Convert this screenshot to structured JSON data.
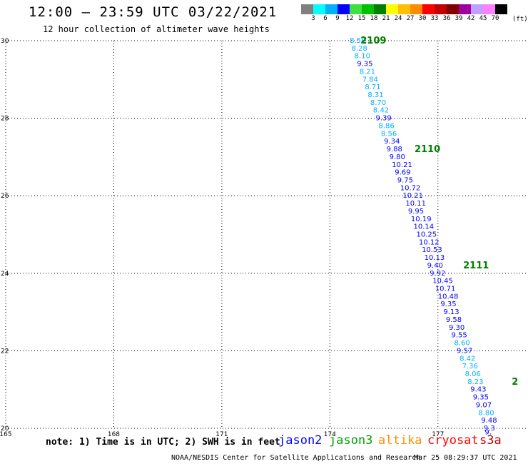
{
  "title": "12:00 – 23:59 UTC 03/22/2021",
  "subtitle": "12 hour collection of altimeter wave heights",
  "legend": {
    "bins": [
      {
        "label": "3",
        "color": "#808080"
      },
      {
        "label": "6",
        "color": "#00ffff"
      },
      {
        "label": "9",
        "color": "#00b0ff"
      },
      {
        "label": "12",
        "color": "#0000ff"
      },
      {
        "label": "15",
        "color": "#40e040"
      },
      {
        "label": "18",
        "color": "#00c000"
      },
      {
        "label": "21",
        "color": "#008000"
      },
      {
        "label": "24",
        "color": "#ffff00"
      },
      {
        "label": "27",
        "color": "#ffc000"
      },
      {
        "label": "30",
        "color": "#ff8c00"
      },
      {
        "label": "33",
        "color": "#ff0000"
      },
      {
        "label": "36",
        "color": "#c00000"
      },
      {
        "label": "39",
        "color": "#800000"
      },
      {
        "label": "42",
        "color": "#a000a0"
      },
      {
        "label": "45",
        "color": "#c0a0ff"
      },
      {
        "label": "70",
        "color": "#ff80ff"
      },
      {
        "label": "",
        "color": "#000000"
      }
    ],
    "unit": "(ft)"
  },
  "note": "note: 1) Time is in UTC; 2) SWH is in feet",
  "satellites": [
    {
      "name": "jason2",
      "color": "#0000ff"
    },
    {
      "name": "jason3",
      "color": "#00a000"
    },
    {
      "name": "altika",
      "color": "#ff8c00"
    },
    {
      "name": "cryosat",
      "color": "#ff0000"
    },
    {
      "name": "s3a",
      "color": "#c00000"
    }
  ],
  "credit": "NOAA/NESDIS Center for Satellite Applications and Research",
  "timestamp": "Mar 25 08:29:37 UTC 2021",
  "chart_data": {
    "type": "scatter",
    "title": "12:00 – 23:59 UTC 03/22/2021",
    "xlabel": "",
    "ylabel": "",
    "xlim": [
      165,
      179.5
    ],
    "ylim": [
      20,
      30
    ],
    "xticks": [
      "165",
      "168",
      "171",
      "174",
      "177"
    ],
    "yticks": [
      "20",
      "22",
      "24",
      "26",
      "28",
      "30"
    ],
    "grid": true,
    "grid_style": "dotted",
    "points": [
      {
        "lon": 174.55,
        "lat": 30.0,
        "label": "8.58",
        "color": "#00b0ff"
      },
      {
        "lon": 174.6,
        "lat": 29.8,
        "label": "8.28",
        "color": "#00b0ff"
      },
      {
        "lon": 174.68,
        "lat": 29.6,
        "label": "8.10",
        "color": "#00b0ff"
      },
      {
        "lon": 174.75,
        "lat": 29.4,
        "label": "9.35",
        "color": "#0000ff"
      },
      {
        "lon": 174.82,
        "lat": 29.2,
        "label": "8.21",
        "color": "#00b0ff"
      },
      {
        "lon": 174.9,
        "lat": 29.0,
        "label": "7.84",
        "color": "#00b0ff"
      },
      {
        "lon": 174.97,
        "lat": 28.8,
        "label": "8.71",
        "color": "#00b0ff"
      },
      {
        "lon": 175.05,
        "lat": 28.6,
        "label": "8.31",
        "color": "#00b0ff"
      },
      {
        "lon": 175.12,
        "lat": 28.4,
        "label": "8.70",
        "color": "#00b0ff"
      },
      {
        "lon": 175.2,
        "lat": 28.2,
        "label": "8.42",
        "color": "#00b0ff"
      },
      {
        "lon": 175.27,
        "lat": 28.0,
        "label": "9.39",
        "color": "#0000ff"
      },
      {
        "lon": 175.35,
        "lat": 27.8,
        "label": "8.86",
        "color": "#00b0ff"
      },
      {
        "lon": 175.42,
        "lat": 27.6,
        "label": "8.56",
        "color": "#00b0ff"
      },
      {
        "lon": 175.5,
        "lat": 27.4,
        "label": "9.34",
        "color": "#0000ff"
      },
      {
        "lon": 175.57,
        "lat": 27.2,
        "label": "9.88",
        "color": "#0000ff"
      },
      {
        "lon": 175.65,
        "lat": 27.0,
        "label": "9.80",
        "color": "#0000ff"
      },
      {
        "lon": 175.72,
        "lat": 26.8,
        "label": "10.21",
        "color": "#0000ff"
      },
      {
        "lon": 175.8,
        "lat": 26.6,
        "label": "9.69",
        "color": "#0000ff"
      },
      {
        "lon": 175.87,
        "lat": 26.4,
        "label": "9.75",
        "color": "#0000ff"
      },
      {
        "lon": 175.95,
        "lat": 26.2,
        "label": "10.72",
        "color": "#0000ff"
      },
      {
        "lon": 176.02,
        "lat": 26.0,
        "label": "10.21",
        "color": "#0000ff"
      },
      {
        "lon": 176.1,
        "lat": 25.8,
        "label": "10.11",
        "color": "#0000ff"
      },
      {
        "lon": 176.17,
        "lat": 25.6,
        "label": "9.95",
        "color": "#0000ff"
      },
      {
        "lon": 176.25,
        "lat": 25.4,
        "label": "10.19",
        "color": "#0000ff"
      },
      {
        "lon": 176.32,
        "lat": 25.2,
        "label": "10.14",
        "color": "#0000ff"
      },
      {
        "lon": 176.4,
        "lat": 25.0,
        "label": "10.25",
        "color": "#0000ff"
      },
      {
        "lon": 176.47,
        "lat": 24.8,
        "label": "10.12",
        "color": "#0000ff"
      },
      {
        "lon": 176.55,
        "lat": 24.6,
        "label": "10.53",
        "color": "#0000ff"
      },
      {
        "lon": 176.62,
        "lat": 24.4,
        "label": "10.13",
        "color": "#0000ff"
      },
      {
        "lon": 176.7,
        "lat": 24.2,
        "label": "9.40",
        "color": "#0000ff"
      },
      {
        "lon": 176.77,
        "lat": 24.0,
        "label": "9.92",
        "color": "#0000ff"
      },
      {
        "lon": 176.85,
        "lat": 23.8,
        "label": "10.45",
        "color": "#0000ff"
      },
      {
        "lon": 176.92,
        "lat": 23.6,
        "label": "10.71",
        "color": "#0000ff"
      },
      {
        "lon": 177.0,
        "lat": 23.4,
        "label": "10.48",
        "color": "#0000ff"
      },
      {
        "lon": 177.07,
        "lat": 23.2,
        "label": "9.35",
        "color": "#0000ff"
      },
      {
        "lon": 177.15,
        "lat": 23.0,
        "label": "9.13",
        "color": "#0000ff"
      },
      {
        "lon": 177.22,
        "lat": 22.8,
        "label": "9.58",
        "color": "#0000ff"
      },
      {
        "lon": 177.3,
        "lat": 22.6,
        "label": "9.30",
        "color": "#0000ff"
      },
      {
        "lon": 177.37,
        "lat": 22.4,
        "label": "9.55",
        "color": "#0000ff"
      },
      {
        "lon": 177.45,
        "lat": 22.2,
        "label": "8.60",
        "color": "#00b0ff"
      },
      {
        "lon": 177.52,
        "lat": 22.0,
        "label": "9.57",
        "color": "#0000ff"
      },
      {
        "lon": 177.6,
        "lat": 21.8,
        "label": "8.42",
        "color": "#00b0ff"
      },
      {
        "lon": 177.67,
        "lat": 21.6,
        "label": "7.36",
        "color": "#00b0ff"
      },
      {
        "lon": 177.75,
        "lat": 21.4,
        "label": "8.06",
        "color": "#00b0ff"
      },
      {
        "lon": 177.82,
        "lat": 21.2,
        "label": "8.23",
        "color": "#00b0ff"
      },
      {
        "lon": 177.9,
        "lat": 21.0,
        "label": "9.43",
        "color": "#0000ff"
      },
      {
        "lon": 177.97,
        "lat": 20.8,
        "label": "9.35",
        "color": "#0000ff"
      },
      {
        "lon": 178.05,
        "lat": 20.6,
        "label": "9.07",
        "color": "#0000ff"
      },
      {
        "lon": 178.12,
        "lat": 20.4,
        "label": "8.80",
        "color": "#00b0ff"
      },
      {
        "lon": 178.2,
        "lat": 20.2,
        "label": "9.48",
        "color": "#0000ff"
      },
      {
        "lon": 178.27,
        "lat": 20.0,
        "label": "9.3",
        "color": "#0000ff"
      },
      {
        "lon": 178.3,
        "lat": 19.9,
        "label": "9.",
        "color": "#0000ff"
      }
    ],
    "pass_labels": [
      {
        "lon": 174.85,
        "lat": 30.0,
        "label": "2109"
      },
      {
        "lon": 176.35,
        "lat": 27.2,
        "label": "2110"
      },
      {
        "lon": 177.7,
        "lat": 24.2,
        "label": "2111"
      },
      {
        "lon": 179.05,
        "lat": 21.2,
        "label": "2"
      }
    ]
  }
}
